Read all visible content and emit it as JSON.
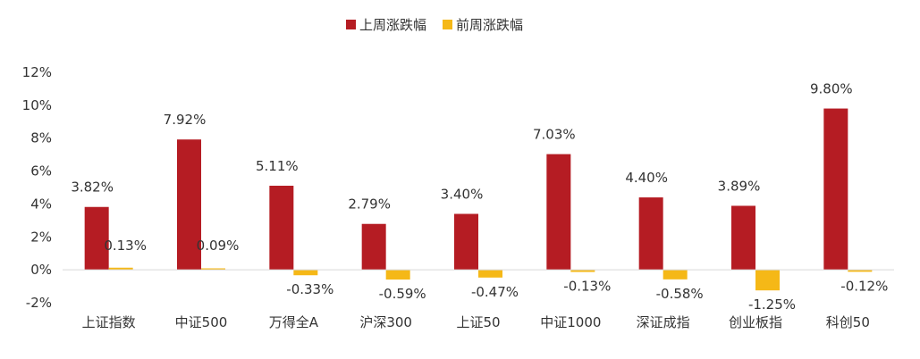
{
  "chart_data": {
    "type": "bar",
    "categories": [
      "上证指数",
      "中证500",
      "万得全A",
      "沪深300",
      "上证50",
      "中证1000",
      "深证成指",
      "创业板指",
      "科创50"
    ],
    "series": [
      {
        "name": "上周涨跌幅",
        "color": "#B51C23",
        "values": [
          3.82,
          7.92,
          5.11,
          2.79,
          3.4,
          7.03,
          4.4,
          3.89,
          9.8
        ],
        "labels": [
          "3.82%",
          "7.92%",
          "5.11%",
          "2.79%",
          "3.40%",
          "7.03%",
          "4.40%",
          "3.89%",
          "9.80%"
        ]
      },
      {
        "name": "前周涨跌幅",
        "color": "#F5B817",
        "values": [
          0.13,
          0.09,
          -0.33,
          -0.59,
          -0.47,
          -0.13,
          -0.58,
          -1.25,
          -0.12
        ],
        "labels": [
          "0.13%",
          "0.09%",
          "-0.33%",
          "-0.59%",
          "-0.47%",
          "-0.13%",
          "-0.58%",
          "-1.25%",
          "-0.12%"
        ]
      }
    ],
    "yticks": [
      "12%",
      "10%",
      "8%",
      "6%",
      "4%",
      "2%",
      "0%",
      "-2%"
    ],
    "ylim": [
      -2,
      12
    ],
    "grid": false,
    "legend_position": "top-center",
    "title": "",
    "xlabel": "",
    "ylabel": ""
  }
}
